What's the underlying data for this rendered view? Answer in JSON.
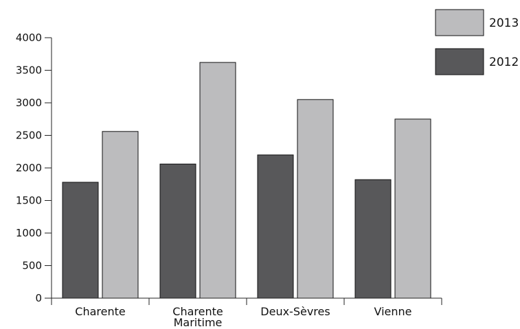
{
  "chart_data": {
    "type": "bar",
    "categories": [
      "Charente",
      "Charente\nMaritime",
      "Deux-Sèvres",
      "Vienne"
    ],
    "series": [
      {
        "name": "2012",
        "values": [
          1780,
          2060,
          2200,
          1820
        ],
        "color": "#58585a"
      },
      {
        "name": "2013",
        "values": [
          2560,
          3620,
          3050,
          2750
        ],
        "color": "#bcbcbe"
      }
    ],
    "title": "",
    "xlabel": "",
    "ylabel": "",
    "ylim": [
      0,
      4000
    ],
    "yticks": [
      "0",
      "500",
      "1000",
      "1500",
      "2000",
      "2500",
      "3000",
      "3500",
      "4000"
    ],
    "grid": false,
    "legend": {
      "position": "top-right",
      "order": [
        "2013",
        "2012"
      ]
    }
  }
}
